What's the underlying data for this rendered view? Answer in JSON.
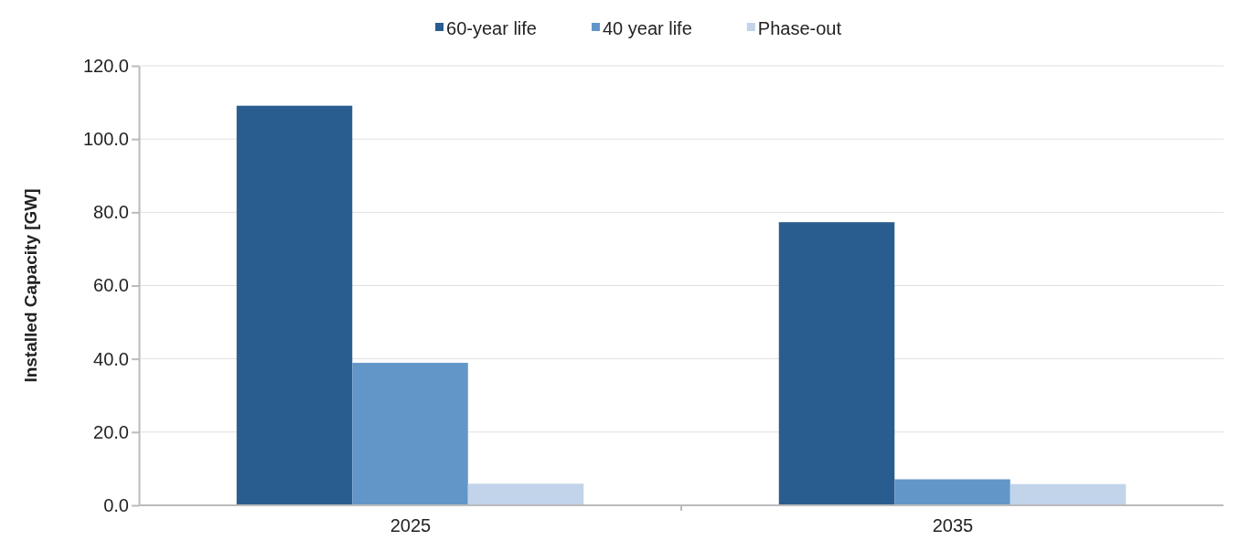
{
  "chart_data": {
    "type": "bar",
    "ylabel": "Installed Capacity [GW]",
    "categories": [
      "2025",
      "2035"
    ],
    "series": [
      {
        "name": "60-year life",
        "color": "#2a5d8f",
        "values": [
          109.1,
          77.3
        ]
      },
      {
        "name": "40 year life",
        "color": "#6296c8",
        "values": [
          38.9,
          7.1
        ]
      },
      {
        "name": "Phase-out",
        "color": "#c1d4ea",
        "values": [
          5.9,
          5.8
        ]
      }
    ],
    "ylim": [
      0,
      120
    ],
    "yticks": [
      {
        "value": 0,
        "label": "0.0"
      },
      {
        "value": 20,
        "label": "20.0"
      },
      {
        "value": 40,
        "label": "40.0"
      },
      {
        "value": 60,
        "label": "60.0"
      },
      {
        "value": 80,
        "label": "80.0"
      },
      {
        "value": 100,
        "label": "100.0"
      },
      {
        "value": 120,
        "label": "120.0"
      }
    ],
    "grid": "y",
    "legend": "top"
  }
}
